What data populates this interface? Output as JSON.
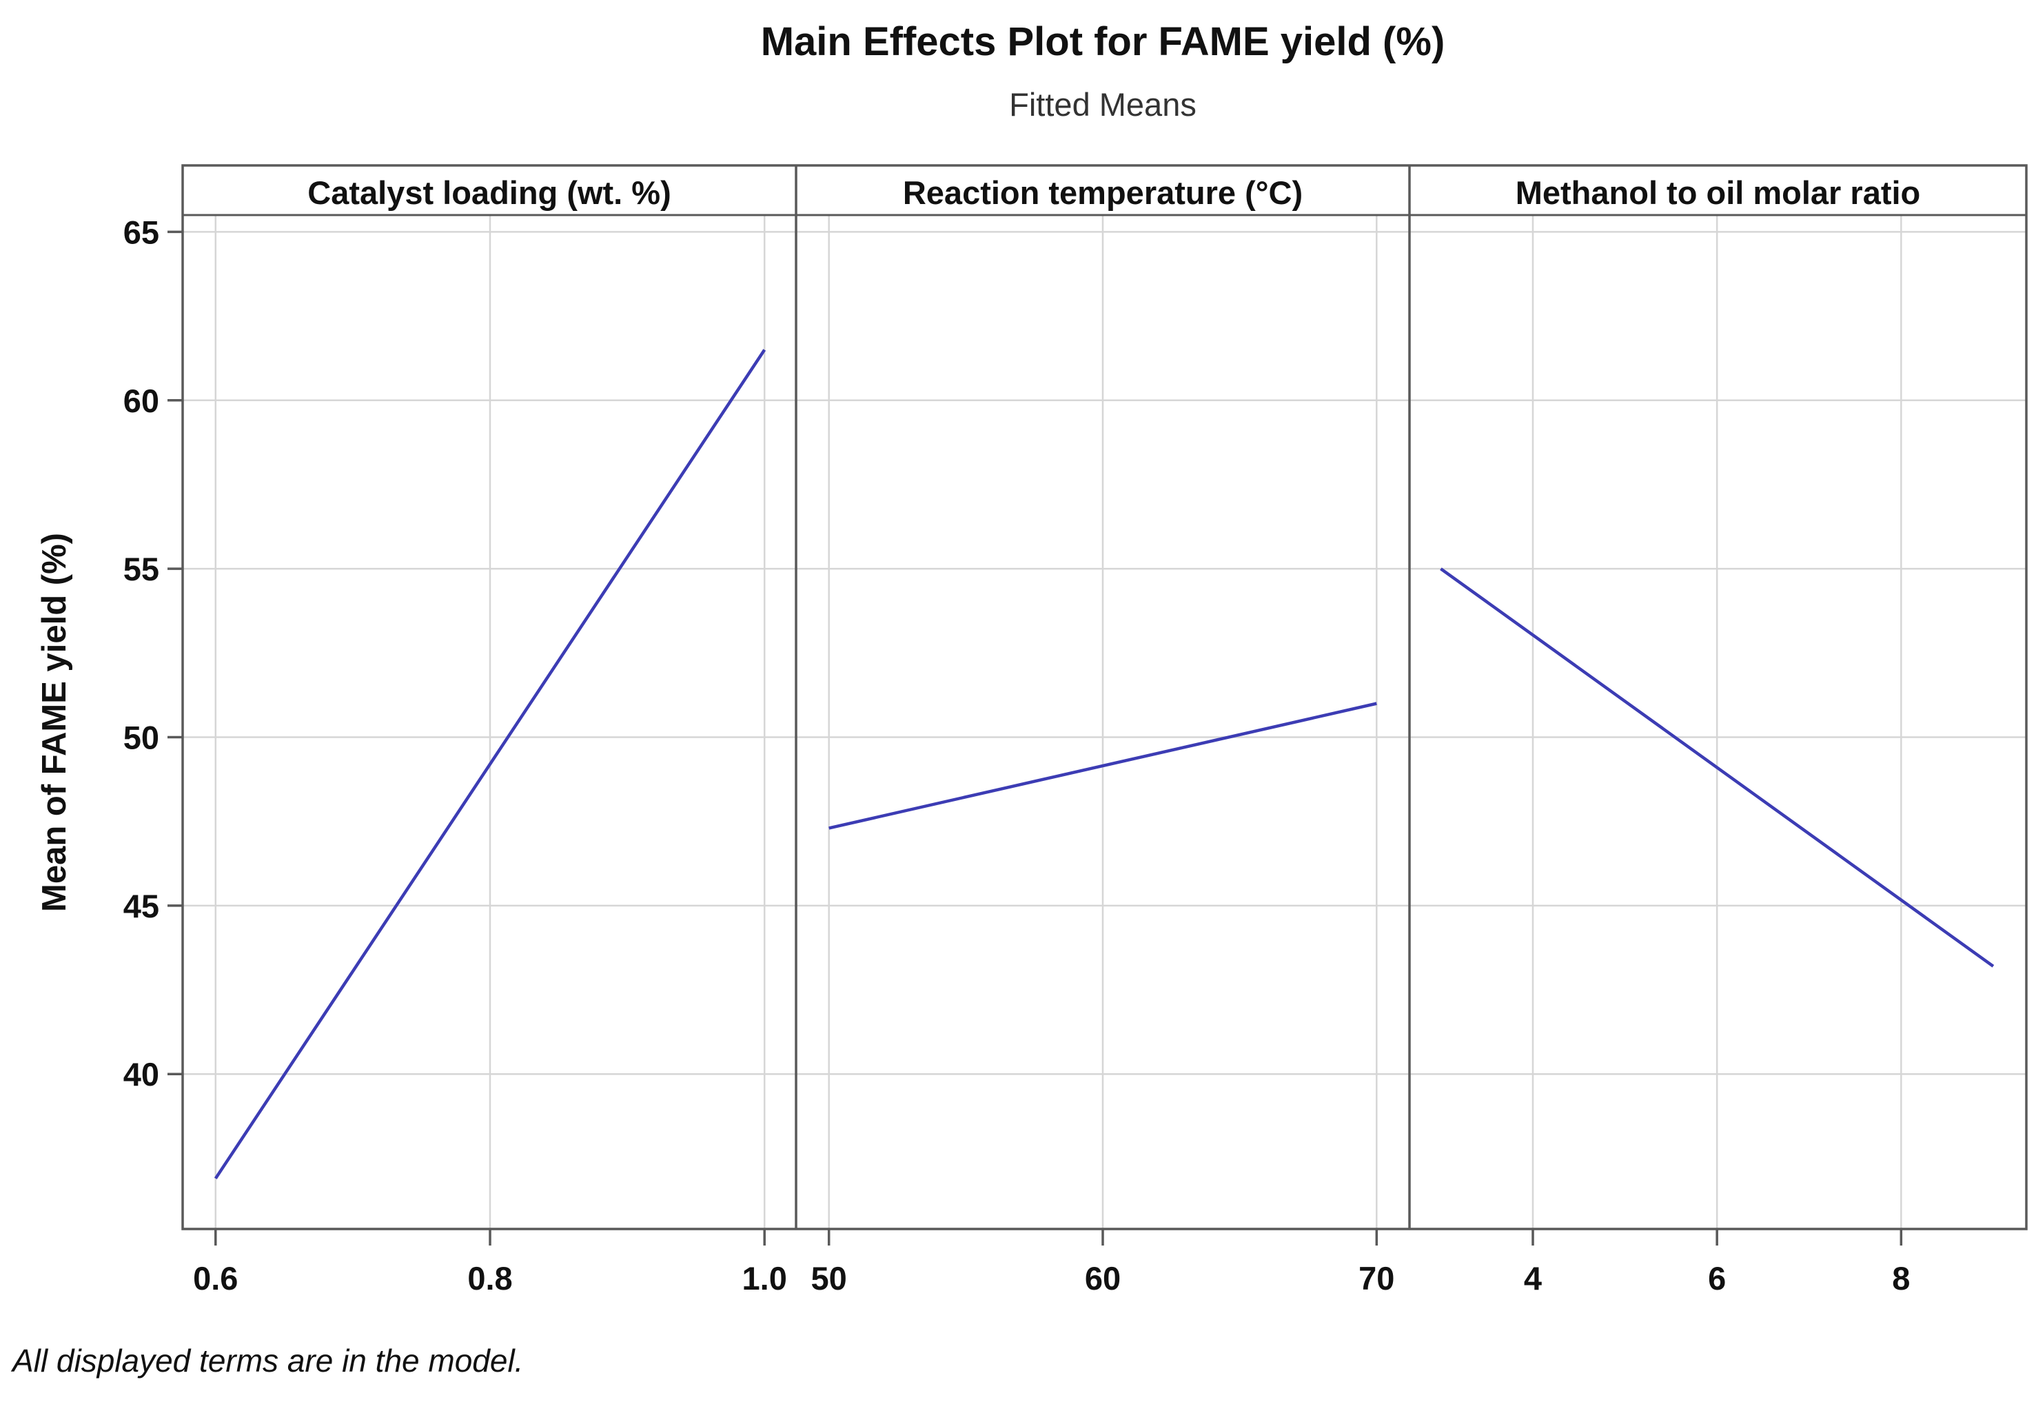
{
  "figure": {
    "title": "Main Effects Plot for FAME yield (%)",
    "subtitle": "Fitted Means",
    "footnote": "All displayed terms are in the model."
  },
  "colors": {
    "line": "#3c3cb4",
    "axis": "#595959",
    "grid": "#d6d6d6",
    "text": "#111111"
  },
  "chart_data": {
    "type": "line",
    "title": "Main Effects Plot for FAME yield (%)",
    "subtitle": "Fitted Means",
    "ylabel": "Mean of FAME yield (%)",
    "ylim": [
      35.4,
      65.5
    ],
    "yticks": [
      40,
      45,
      50,
      55,
      60,
      65
    ],
    "grid": true,
    "legend": "none",
    "footnote": "All displayed terms are in the model.",
    "panels": [
      {
        "label": "Catalyst loading (wt. %)",
        "xlim": [
          0.576,
          1.023
        ],
        "xticks": [
          0.6,
          0.8,
          1.0
        ],
        "xtick_labels": [
          "0.6",
          "0.8",
          "1.0"
        ],
        "x": [
          0.6,
          1.0
        ],
        "y": [
          36.9,
          61.5
        ]
      },
      {
        "label": "Reaction temperature (°C)",
        "xlim": [
          48.8,
          71.2
        ],
        "xticks": [
          50,
          60,
          70
        ],
        "xtick_labels": [
          "50",
          "60",
          "70"
        ],
        "x": [
          50,
          70
        ],
        "y": [
          47.3,
          51.0
        ]
      },
      {
        "label": "Methanol to oil molar ratio",
        "xlim": [
          2.66,
          9.36
        ],
        "xticks": [
          4,
          6,
          8
        ],
        "xtick_labels": [
          "4",
          "6",
          "8"
        ],
        "x": [
          3,
          9
        ],
        "y": [
          55.0,
          43.2
        ]
      }
    ]
  }
}
